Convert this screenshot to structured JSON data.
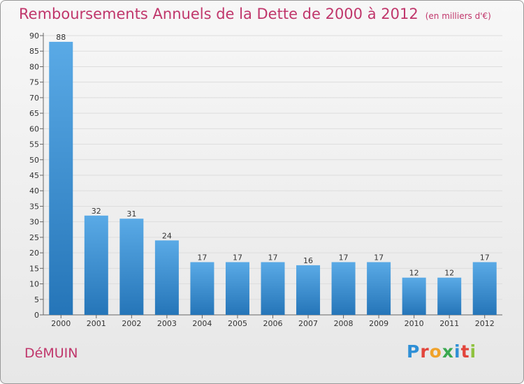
{
  "header": {
    "title": "Remboursements Annuels de la Dette de 2000 à 2012",
    "subtitle": "(en milliers d'€)"
  },
  "footer": {
    "commune": "DéMUIN",
    "logo_letters": [
      "P",
      "r",
      "o",
      "x",
      "i",
      "t",
      "i"
    ],
    "logo_colors": [
      "#2e8fd6",
      "#e2453c",
      "#f0a22a",
      "#3aa84f",
      "#2e8fd6",
      "#e2453c",
      "#8fc23f"
    ]
  },
  "chart_data": {
    "type": "bar",
    "title": "Remboursements Annuels de la Dette de 2000 à 2012",
    "subtitle": "(en milliers d'€)",
    "categories": [
      "2000",
      "2001",
      "2002",
      "2003",
      "2004",
      "2005",
      "2006",
      "2007",
      "2008",
      "2009",
      "2010",
      "2011",
      "2012"
    ],
    "values": [
      88,
      32,
      31,
      24,
      17,
      17,
      17,
      16,
      17,
      17,
      12,
      12,
      17
    ],
    "value_labels": [
      "88",
      "32",
      "31",
      "24",
      "17",
      "17",
      "17",
      "16",
      "17",
      "17",
      "12",
      "12",
      "17"
    ],
    "ylim": [
      0,
      90
    ],
    "y_ticks": [
      0,
      5,
      10,
      15,
      20,
      25,
      30,
      35,
      40,
      45,
      50,
      55,
      60,
      65,
      70,
      75,
      80,
      85,
      90
    ],
    "grid": true,
    "legend": "none",
    "colors": {
      "bar_light": "#5aaae6",
      "bar_dark": "#2575b8",
      "grid": "#dddddd",
      "text_accent": "#c0366b"
    }
  }
}
